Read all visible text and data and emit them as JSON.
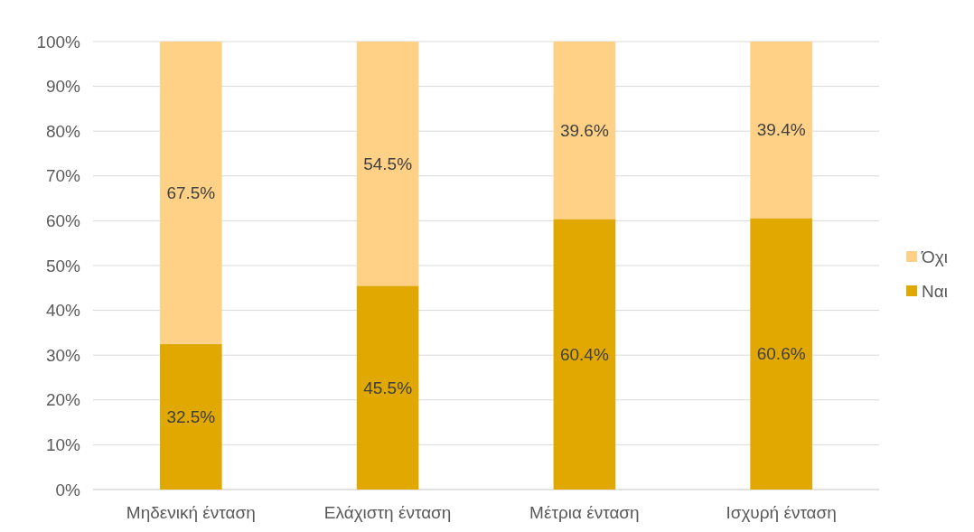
{
  "chart_data": {
    "type": "bar",
    "stacked": true,
    "categories": [
      "Μηδενική ένταση",
      "Ελάχιστη ένταση",
      "Μέτρια ένταση",
      "Ισχυρή ένταση"
    ],
    "series": [
      {
        "name": "Ναι",
        "color": "#e0a800",
        "values": [
          32.5,
          45.5,
          60.4,
          60.6
        ],
        "value_labels": [
          "32.5%",
          "45.5%",
          "60.4%",
          "60.6%"
        ]
      },
      {
        "name": "Όχι",
        "color": "#ffd187",
        "values": [
          67.5,
          54.5,
          39.6,
          39.4
        ],
        "value_labels": [
          "67.5%",
          "54.5%",
          "39.6%",
          "39.4%"
        ]
      }
    ],
    "ylim": [
      0,
      100
    ],
    "yticks": [
      {
        "value": 0,
        "label": "0%"
      },
      {
        "value": 10,
        "label": "10%"
      },
      {
        "value": 20,
        "label": "20%"
      },
      {
        "value": 30,
        "label": "30%"
      },
      {
        "value": 40,
        "label": "40%"
      },
      {
        "value": 50,
        "label": "50%"
      },
      {
        "value": 60,
        "label": "60%"
      },
      {
        "value": 70,
        "label": "70%"
      },
      {
        "value": 80,
        "label": "80%"
      },
      {
        "value": 90,
        "label": "90%"
      },
      {
        "value": 100,
        "label": "100%"
      }
    ],
    "grid": "y",
    "legend": "right"
  }
}
